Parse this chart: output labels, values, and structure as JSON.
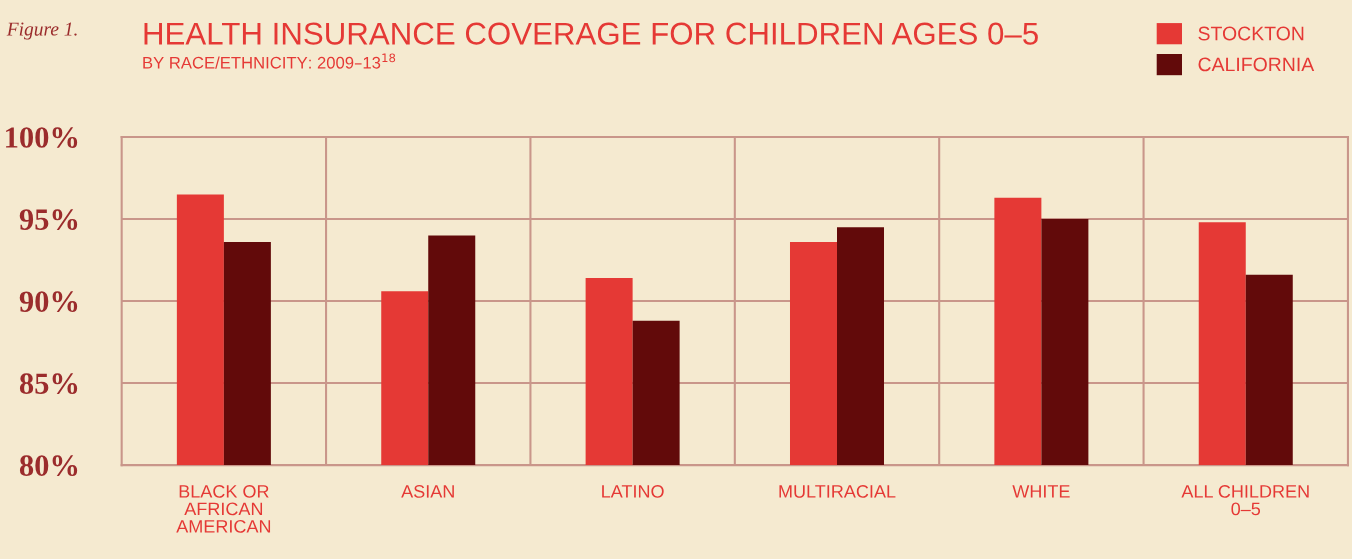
{
  "chart_data": {
    "type": "bar",
    "title": "HEALTH INSURANCE COVERAGE FOR CHILDREN AGES 0–5",
    "subtitle": "BY RACE/ETHNICITY: 2009–13$^{18}$",
    "annotations": [
      "Figure 1."
    ],
    "categories": [
      "BLACK OR\nAFRICAN\nAMERICAN",
      "ASIAN",
      "LATINO",
      "MULTIRACIAL",
      "WHITE",
      "ALL CHILDREN\n0–5"
    ],
    "series": [
      {
        "name": "STOCKTON",
        "color": "#e53935",
        "values": [
          96.5,
          90.6,
          91.4,
          93.6,
          96.3,
          94.8
        ]
      },
      {
        "name": "CALIFORNIA",
        "color": "#620a0a",
        "values": [
          93.6,
          94.0,
          88.8,
          94.5,
          95.0,
          91.6
        ]
      }
    ],
    "ylim": [
      80,
      100
    ],
    "yticks": [
      {
        "value": 80,
        "label": "80%"
      },
      {
        "value": 85,
        "label": "85%"
      },
      {
        "value": 90,
        "label": "90%"
      },
      {
        "value": 95,
        "label": "95%"
      },
      {
        "value": 100,
        "label": "100%"
      }
    ],
    "grid": true,
    "legend": "top right"
  }
}
